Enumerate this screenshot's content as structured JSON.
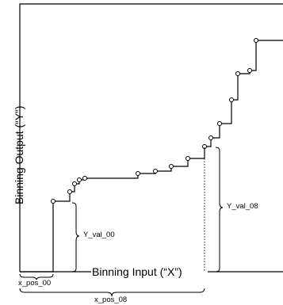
{
  "labels": {
    "x_axis": "Binning Input (“X”)",
    "y_axis": "Binning Output (“Y”)",
    "y_val_00": "Y_val_00",
    "y_val_08": "Y_val_08",
    "x_pos_00": "x_pos_00",
    "x_pos_08": "x_pos_08"
  },
  "colors": {
    "line": "#000000",
    "background": "#ffffff"
  }
}
